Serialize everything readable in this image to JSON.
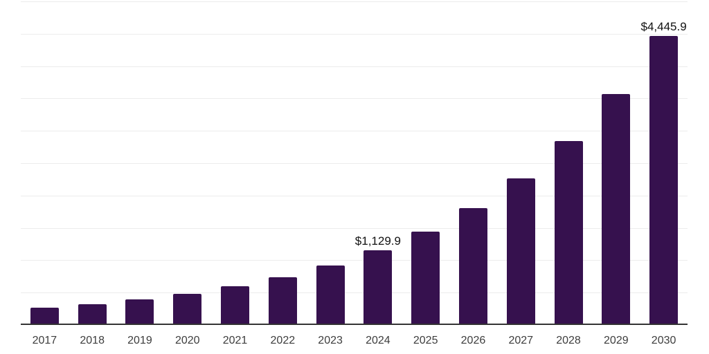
{
  "chart_data": {
    "type": "bar",
    "title": "",
    "xlabel": "",
    "ylabel": "",
    "categories": [
      "2017",
      "2018",
      "2019",
      "2020",
      "2021",
      "2022",
      "2023",
      "2024",
      "2025",
      "2026",
      "2027",
      "2028",
      "2029",
      "2030"
    ],
    "values": [
      250,
      300,
      375,
      458,
      573,
      716,
      901,
      1129.9,
      1423,
      1788,
      2242,
      2820,
      3551,
      4445.9
    ],
    "annotations": [
      {
        "category_index": 7,
        "category": "2024",
        "text": "$1,129.9",
        "value": 1129.9
      },
      {
        "category_index": 13,
        "category": "2030",
        "text": "$4,445.9",
        "value": 4445.9
      }
    ],
    "ylim": [
      0,
      5000
    ],
    "gridline_step": 500,
    "grid": true,
    "y_tick_labels_shown": false,
    "legend_position": "none"
  },
  "colors": {
    "background": "#ffffff",
    "bar": "#36114E",
    "gridline": "#ececec",
    "axis_line": "#333333",
    "tick_label": "#3d3d3d",
    "data_label": "#111111"
  }
}
